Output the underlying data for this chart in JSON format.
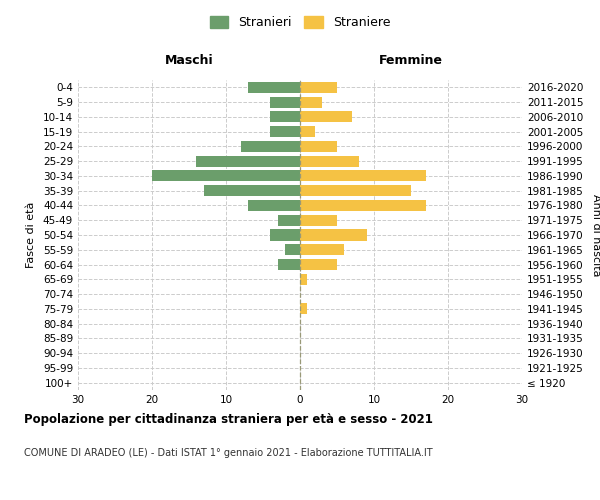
{
  "age_groups": [
    "100+",
    "95-99",
    "90-94",
    "85-89",
    "80-84",
    "75-79",
    "70-74",
    "65-69",
    "60-64",
    "55-59",
    "50-54",
    "45-49",
    "40-44",
    "35-39",
    "30-34",
    "25-29",
    "20-24",
    "15-19",
    "10-14",
    "5-9",
    "0-4"
  ],
  "birth_years": [
    "≤ 1920",
    "1921-1925",
    "1926-1930",
    "1931-1935",
    "1936-1940",
    "1941-1945",
    "1946-1950",
    "1951-1955",
    "1956-1960",
    "1961-1965",
    "1966-1970",
    "1971-1975",
    "1976-1980",
    "1981-1985",
    "1986-1990",
    "1991-1995",
    "1996-2000",
    "2001-2005",
    "2006-2010",
    "2011-2015",
    "2016-2020"
  ],
  "maschi": [
    0,
    0,
    0,
    0,
    0,
    0,
    0,
    0,
    3,
    2,
    4,
    3,
    7,
    13,
    20,
    14,
    8,
    4,
    4,
    4,
    7
  ],
  "femmine": [
    0,
    0,
    0,
    0,
    0,
    1,
    0,
    1,
    5,
    6,
    9,
    5,
    17,
    15,
    17,
    8,
    5,
    2,
    7,
    3,
    5
  ],
  "color_maschi": "#6b9e6b",
  "color_femmine": "#f5c244",
  "xlim": 30,
  "xlabel_left": "Maschi",
  "xlabel_right": "Femmine",
  "ylabel_left": "Fasce di età",
  "ylabel_right": "Anni di nascita",
  "title": "Popolazione per cittadinanza straniera per età e sesso - 2021",
  "subtitle": "COMUNE DI ARADEO (LE) - Dati ISTAT 1° gennaio 2021 - Elaborazione TUTTITALIA.IT",
  "legend_maschi": "Stranieri",
  "legend_femmine": "Straniere",
  "bg_color": "#ffffff",
  "grid_color": "#cccccc"
}
